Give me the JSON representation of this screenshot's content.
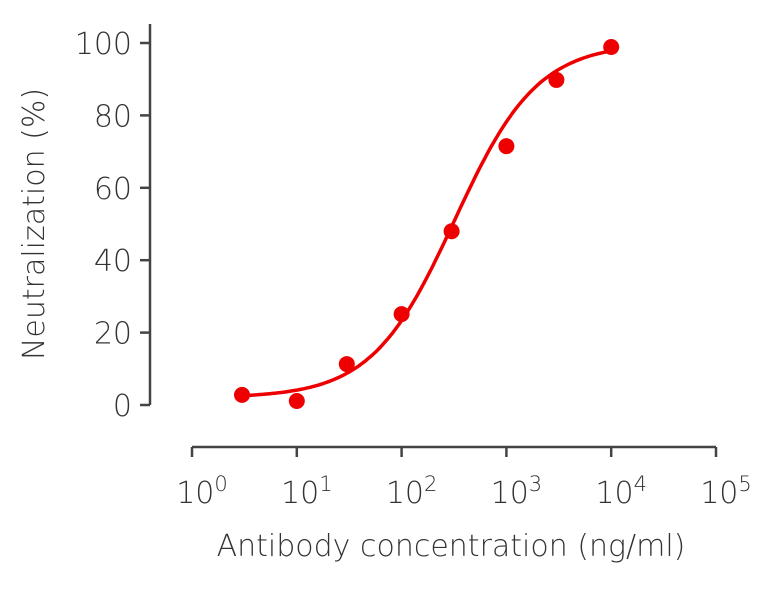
{
  "chart_data": {
    "type": "scatter",
    "title": "",
    "xlabel": "Antibody concentration (ng/ml)",
    "ylabel": "Neutralization (%)",
    "x_scale": "log",
    "xlim": [
      1,
      100000
    ],
    "ylim": [
      0,
      100
    ],
    "x_ticks": [
      {
        "base": "10",
        "exp": "0"
      },
      {
        "base": "10",
        "exp": "1"
      },
      {
        "base": "10",
        "exp": "2"
      },
      {
        "base": "10",
        "exp": "3"
      },
      {
        "base": "10",
        "exp": "4"
      },
      {
        "base": "10",
        "exp": "5"
      }
    ],
    "y_ticks": [
      "0",
      "20",
      "40",
      "60",
      "80",
      "100"
    ],
    "grid": false,
    "color": "#ee0000",
    "points": [
      {
        "x": 3,
        "y": 2.8
      },
      {
        "x": 10,
        "y": 1.1
      },
      {
        "x": 30,
        "y": 11.3
      },
      {
        "x": 100,
        "y": 25.1
      },
      {
        "x": 300,
        "y": 48
      },
      {
        "x": 1000,
        "y": 71.5
      },
      {
        "x": 3000,
        "y": 89.8
      },
      {
        "x": 10000,
        "y": 98.9
      }
    ],
    "fit_curve": {
      "type": "sigmoid",
      "x_range": [
        3,
        10000
      ]
    }
  }
}
